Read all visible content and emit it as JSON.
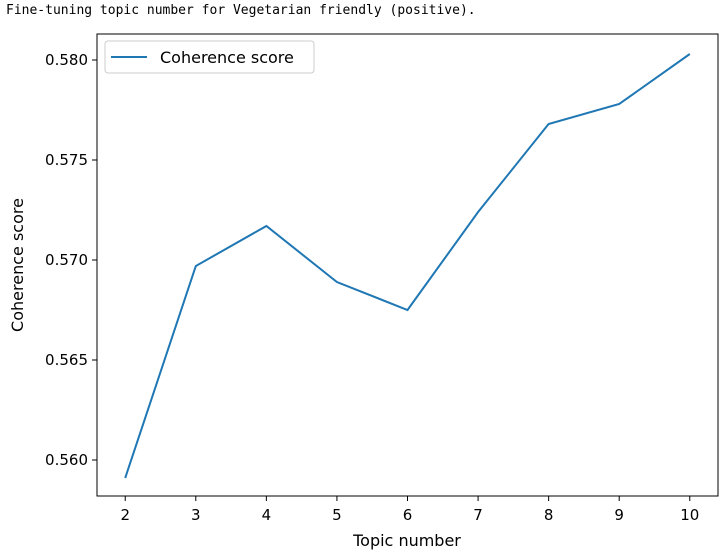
{
  "caption": "Fine-tuning topic number for Vegetarian friendly (positive).",
  "chart_data": {
    "type": "line",
    "x": [
      2,
      3,
      4,
      5,
      6,
      7,
      8,
      9,
      10
    ],
    "series": [
      {
        "name": "Coherence score",
        "color": "#1f77b4",
        "values": [
          0.5591,
          0.5697,
          0.5717,
          0.5689,
          0.5675,
          0.5724,
          0.5768,
          0.5778,
          0.5803
        ]
      }
    ],
    "xlabel": "Topic number",
    "ylabel": "Coherence score",
    "xticks": [
      2,
      3,
      4,
      5,
      6,
      7,
      8,
      9,
      10
    ],
    "yticks": [
      "0.560",
      "0.565",
      "0.570",
      "0.575",
      "0.580"
    ],
    "ytick_values": [
      0.56,
      0.565,
      0.57,
      0.575,
      0.58
    ],
    "xlim": [
      1.6,
      10.4
    ],
    "ylim": [
      0.5582,
      0.5813
    ],
    "legend_placement": "top-left",
    "grid": false
  }
}
